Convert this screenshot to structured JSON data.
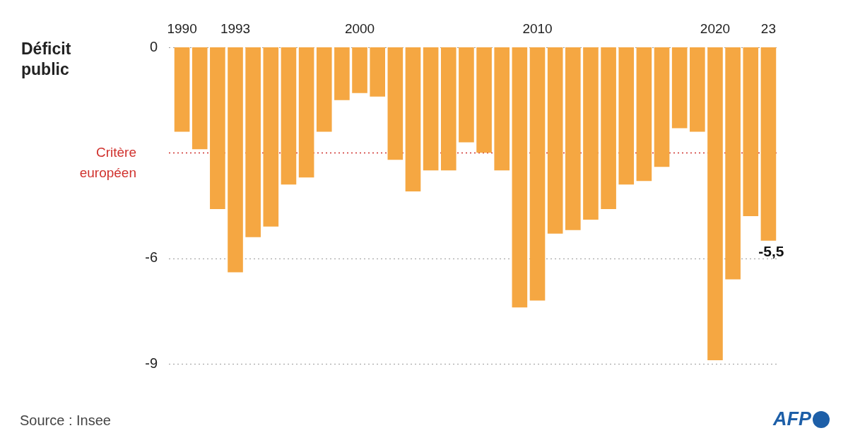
{
  "chart_data": {
    "type": "bar",
    "title": "Déficit public",
    "categories": [
      "1990",
      null,
      null,
      "1993",
      null,
      null,
      null,
      null,
      null,
      null,
      "2000",
      null,
      null,
      null,
      null,
      null,
      null,
      null,
      null,
      null,
      "2010",
      null,
      null,
      null,
      null,
      null,
      null,
      null,
      null,
      null,
      "2020",
      null,
      null,
      "23"
    ],
    "values": [
      -2.4,
      -2.9,
      -4.6,
      -6.4,
      -5.4,
      -5.1,
      -3.9,
      -3.7,
      -2.4,
      -1.5,
      -1.3,
      -1.4,
      -3.2,
      -4.1,
      -3.5,
      -3.5,
      -2.7,
      -3.0,
      -3.5,
      -7.4,
      -7.2,
      -5.3,
      -5.2,
      -4.9,
      -4.6,
      -3.9,
      -3.8,
      -3.4,
      -2.3,
      -2.4,
      -8.9,
      -6.6,
      -4.8,
      -5.5
    ],
    "color": "#f5a742",
    "ylim": [
      -9,
      0
    ],
    "yticks": [
      -9,
      -6,
      0
    ],
    "grid": true,
    "data_labels": true,
    "value_labels": [
      null,
      null,
      null,
      null,
      null,
      null,
      null,
      null,
      null,
      null,
      null,
      null,
      null,
      null,
      null,
      null,
      null,
      null,
      null,
      null,
      null,
      null,
      null,
      null,
      null,
      null,
      null,
      null,
      null,
      null,
      null,
      null,
      null,
      "-5,5"
    ],
    "annotations": [
      {
        "y": -3,
        "label": "Critère européen",
        "color": "#d0312d",
        "line_style": "dotted"
      }
    ],
    "source": "Source : Insee",
    "logo": "AFP"
  }
}
